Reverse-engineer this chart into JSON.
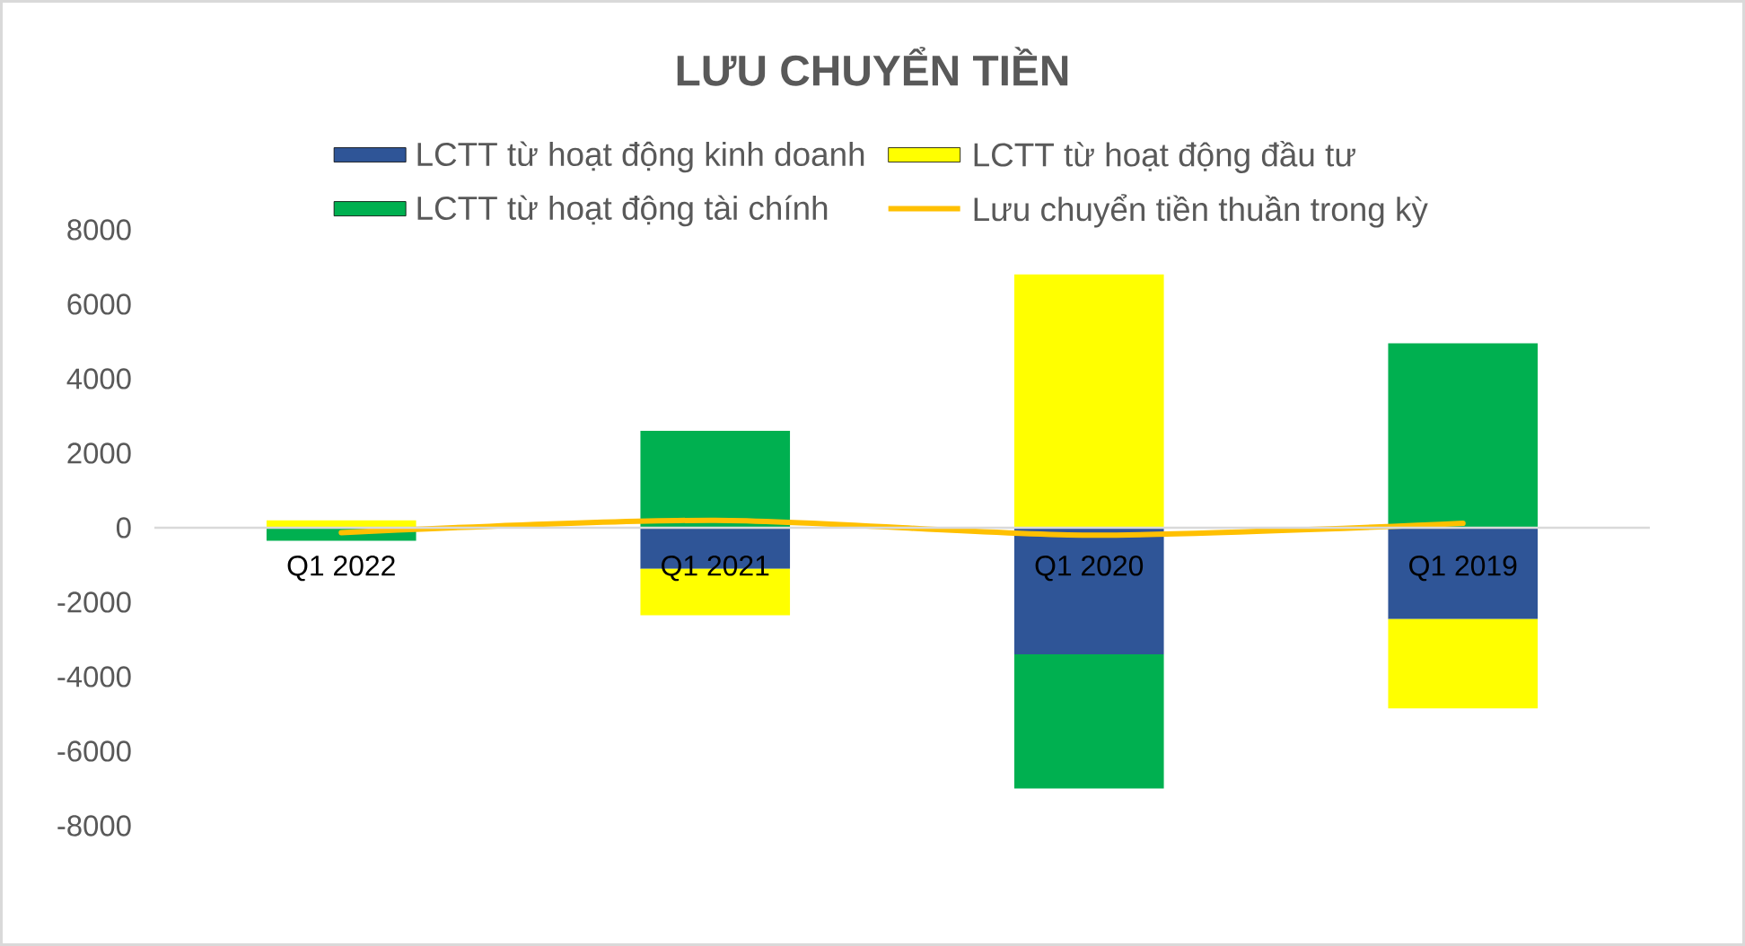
{
  "chart_data": {
    "type": "bar",
    "title": "LƯU CHUYỂN TIỀN",
    "stacked": true,
    "categories": [
      "Q1 2022",
      "Q1 2021",
      "Q1 2020",
      "Q1 2019"
    ],
    "series": [
      {
        "name": "LCTT từ hoạt động kinh doanh",
        "color": "#2f5597",
        "values": [
          null,
          -1100,
          -3400,
          -2450
        ]
      },
      {
        "name": "LCTT từ hoạt động đầu tư",
        "color": "#ffff00",
        "values": [
          200,
          -1250,
          6800,
          -2400
        ]
      },
      {
        "name": "LCTT từ hoạt động tài chính",
        "color": "#00b050",
        "values": [
          -350,
          2600,
          -3600,
          4950
        ]
      },
      {
        "name": "Lưu chuyển tiền thuần trong kỳ",
        "type": "line",
        "color": "#ffc000",
        "values": [
          -130,
          200,
          -200,
          120
        ]
      }
    ],
    "ylim": [
      -8000,
      8000
    ],
    "yticks": [
      -8000,
      -6000,
      -4000,
      -2000,
      0,
      2000,
      4000,
      6000,
      8000
    ],
    "legend": "top",
    "marker": "none"
  }
}
